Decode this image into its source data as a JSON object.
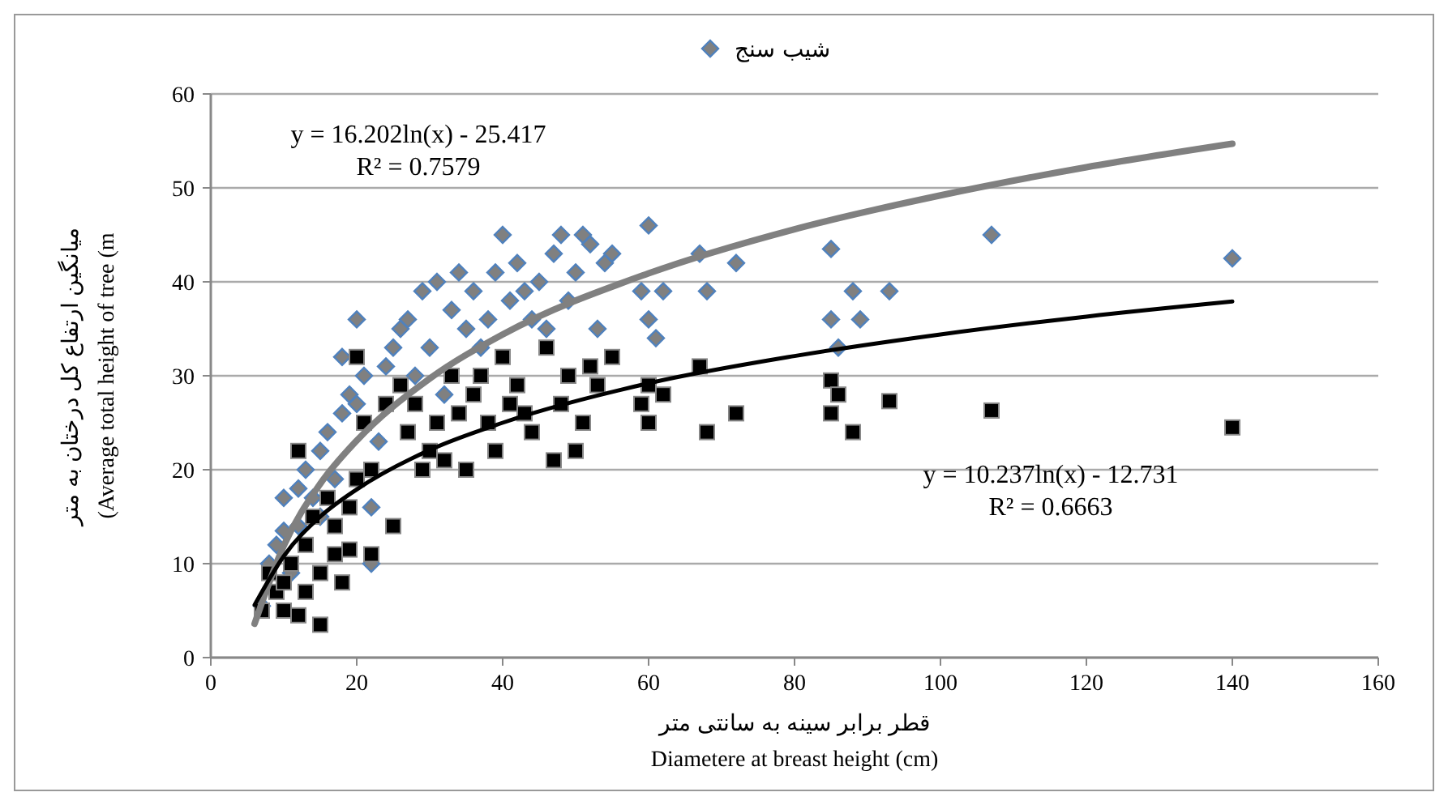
{
  "chart_data": {
    "type": "scatter",
    "xlabel": "قطر برابر سینه به سانتی متر\nDiametere at breast height (cm)",
    "ylabel": "میانگین ارتفاع کل درختان به متر\n(Average total height of tree (m",
    "xlim": [
      0,
      160
    ],
    "xticks": [
      0,
      20,
      40,
      60,
      80,
      100,
      120,
      140,
      160
    ],
    "ylim": [
      0,
      60
    ],
    "yticks": [
      0,
      10,
      20,
      30,
      40,
      50,
      60
    ],
    "grid": "y",
    "legend": "top",
    "annotations": [
      "y = 16.202ln(x) - 25.417\nR² = 0.7579",
      "y = 10.237ln(x) - 12.731\nR² = 0.6663"
    ],
    "series": [
      {
        "name": "شیب سنج",
        "marker": "diamond",
        "color": "#808080",
        "x": [
          7,
          8,
          9,
          10,
          10,
          11,
          12,
          12,
          13,
          14,
          15,
          15,
          16,
          17,
          18,
          18,
          19,
          20,
          20,
          21,
          22,
          22,
          23,
          24,
          25,
          26,
          27,
          28,
          29,
          30,
          31,
          32,
          33,
          34,
          35,
          36,
          37,
          38,
          39,
          40,
          41,
          42,
          43,
          44,
          45,
          46,
          47,
          48,
          49,
          50,
          51,
          52,
          53,
          54,
          55,
          59,
          60,
          60,
          61,
          62,
          67,
          68,
          72,
          85,
          85,
          86,
          88,
          89,
          93,
          107,
          140
        ],
        "values": [
          5.5,
          10,
          12,
          13.5,
          17,
          9,
          18,
          14,
          20,
          17,
          15,
          22,
          24,
          19,
          26,
          32,
          28,
          36,
          27,
          30,
          16,
          10,
          23,
          31,
          33,
          35,
          36,
          30,
          39,
          33,
          40,
          28,
          37,
          41,
          35,
          39,
          33,
          36,
          41,
          45,
          38,
          42,
          39,
          36,
          40,
          35,
          43,
          45,
          38,
          41,
          45,
          44,
          35,
          42,
          43,
          39,
          46,
          36,
          34,
          39,
          43,
          39,
          42,
          43.5,
          36,
          33,
          39,
          36,
          39,
          45,
          42.5
        ]
      },
      {
        "marker": "square",
        "color": "#000000",
        "x": [
          7,
          8,
          9,
          10,
          10,
          11,
          12,
          12,
          13,
          13,
          14,
          15,
          15,
          16,
          17,
          17,
          18,
          19,
          19,
          20,
          20,
          21,
          22,
          22,
          24,
          25,
          26,
          27,
          28,
          29,
          30,
          31,
          32,
          33,
          34,
          35,
          36,
          37,
          38,
          39,
          40,
          41,
          42,
          43,
          44,
          46,
          47,
          48,
          49,
          50,
          51,
          52,
          53,
          55,
          59,
          60,
          60,
          62,
          67,
          68,
          72,
          85,
          85,
          86,
          88,
          93,
          107,
          140
        ],
        "values": [
          5,
          9,
          7,
          8,
          5,
          10,
          22,
          4.5,
          12,
          7,
          15,
          3.5,
          9,
          17,
          11,
          14,
          8,
          16,
          11.5,
          32,
          19,
          25,
          11,
          20,
          27,
          14,
          29,
          24,
          27,
          20,
          22,
          25,
          21,
          30,
          26,
          20,
          28,
          30,
          25,
          22,
          32,
          27,
          29,
          26,
          24,
          33,
          21,
          27,
          30,
          22,
          25,
          31,
          29,
          32,
          27,
          29,
          25,
          28,
          31,
          24,
          26,
          29.5,
          26,
          28,
          24,
          27.3,
          26.3,
          24.5
        ]
      },
      {
        "type": "line",
        "color": "#808080",
        "x": [
          6,
          10,
          15,
          20,
          30,
          40,
          60,
          80,
          100,
          120,
          140
        ],
        "values": [
          3.6,
          11.9,
          18.5,
          23.1,
          29.7,
          34.4,
          40.9,
          45.6,
          49.2,
          52.2,
          54.7
        ]
      },
      {
        "type": "line",
        "color": "#000000",
        "x": [
          6,
          10,
          15,
          20,
          30,
          40,
          60,
          80,
          100,
          120,
          140
        ],
        "values": [
          5.6,
          10.8,
          15,
          17.9,
          22.1,
          25,
          29.2,
          32.1,
          34.4,
          36.3,
          37.9
        ]
      }
    ]
  }
}
